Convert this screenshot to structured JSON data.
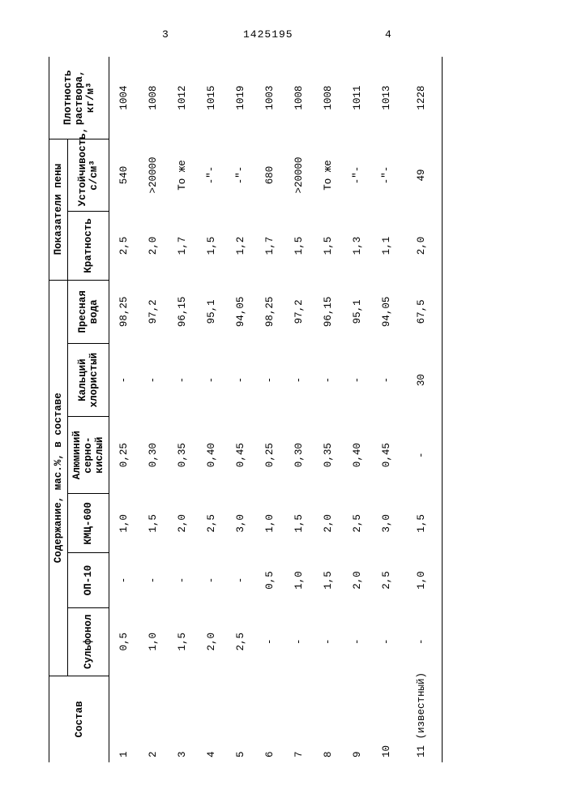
{
  "header": {
    "left_page": "3",
    "doc_number": "1425195",
    "right_page": "4"
  },
  "table": {
    "head": {
      "composition": "Состав",
      "content_group": "Содержание, мас.%, в составе",
      "foam_group": "Показатели пены",
      "density": "Плотность раствора, кг/м³",
      "cols": {
        "sulfonol": "Сульфонол",
        "op10": "ОП-10",
        "kmc600": "КМЦ-600",
        "al": "Алюминий серно-кислый",
        "cacl": "Кальций хлористый",
        "water": "Пресная вода",
        "mult": "Кратность",
        "stab": "Устойчивость, с/см³"
      }
    },
    "rows": [
      {
        "n": "1",
        "sulfonol": "0,5",
        "op10": "-",
        "kmc": "1,0",
        "al": "0,25",
        "cacl": "-",
        "water": "98,25",
        "mult": "2,5",
        "stab": "540",
        "dens": "1004"
      },
      {
        "n": "2",
        "sulfonol": "1,0",
        "op10": "-",
        "kmc": "1,5",
        "al": "0,30",
        "cacl": "-",
        "water": "97,2",
        "mult": "2,0",
        "stab": ">20000",
        "dens": "1008"
      },
      {
        "n": "3",
        "sulfonol": "1,5",
        "op10": "-",
        "kmc": "2,0",
        "al": "0,35",
        "cacl": "-",
        "water": "96,15",
        "mult": "1,7",
        "stab": "То же",
        "dens": "1012"
      },
      {
        "n": "4",
        "sulfonol": "2,0",
        "op10": "-",
        "kmc": "2,5",
        "al": "0,40",
        "cacl": "-",
        "water": "95,1",
        "mult": "1,5",
        "stab": "-\"-",
        "dens": "1015"
      },
      {
        "n": "5",
        "sulfonol": "2,5",
        "op10": "-",
        "kmc": "3,0",
        "al": "0,45",
        "cacl": "-",
        "water": "94,05",
        "mult": "1,2",
        "stab": "-\"-",
        "dens": "1019"
      },
      {
        "n": "6",
        "sulfonol": "-",
        "op10": "0,5",
        "kmc": "1,0",
        "al": "0,25",
        "cacl": "-",
        "water": "98,25",
        "mult": "1,7",
        "stab": "680",
        "dens": "1003"
      },
      {
        "n": "7",
        "sulfonol": "-",
        "op10": "1,0",
        "kmc": "1,5",
        "al": "0,30",
        "cacl": "-",
        "water": "97,2",
        "mult": "1,5",
        "stab": ">20000",
        "dens": "1008"
      },
      {
        "n": "8",
        "sulfonol": "-",
        "op10": "1,5",
        "kmc": "2,0",
        "al": "0,35",
        "cacl": "-",
        "water": "96,15",
        "mult": "1,5",
        "stab": "То же",
        "dens": "1008"
      },
      {
        "n": "9",
        "sulfonol": "-",
        "op10": "2,0",
        "kmc": "2,5",
        "al": "0,40",
        "cacl": "-",
        "water": "95,1",
        "mult": "1,3",
        "stab": "-\"-",
        "dens": "1011"
      },
      {
        "n": "10",
        "sulfonol": "-",
        "op10": "2,5",
        "kmc": "3,0",
        "al": "0,45",
        "cacl": "-",
        "water": "94,05",
        "mult": "1,1",
        "stab": "-\"-",
        "dens": "1013"
      },
      {
        "n": "11 (известный)",
        "sulfonol": "-",
        "op10": "1,0",
        "kmc": "1,5",
        "al": "-",
        "cacl": "30",
        "water": "67,5",
        "mult": "2,0",
        "stab": "49",
        "dens": "1228",
        "gap": true
      }
    ]
  }
}
